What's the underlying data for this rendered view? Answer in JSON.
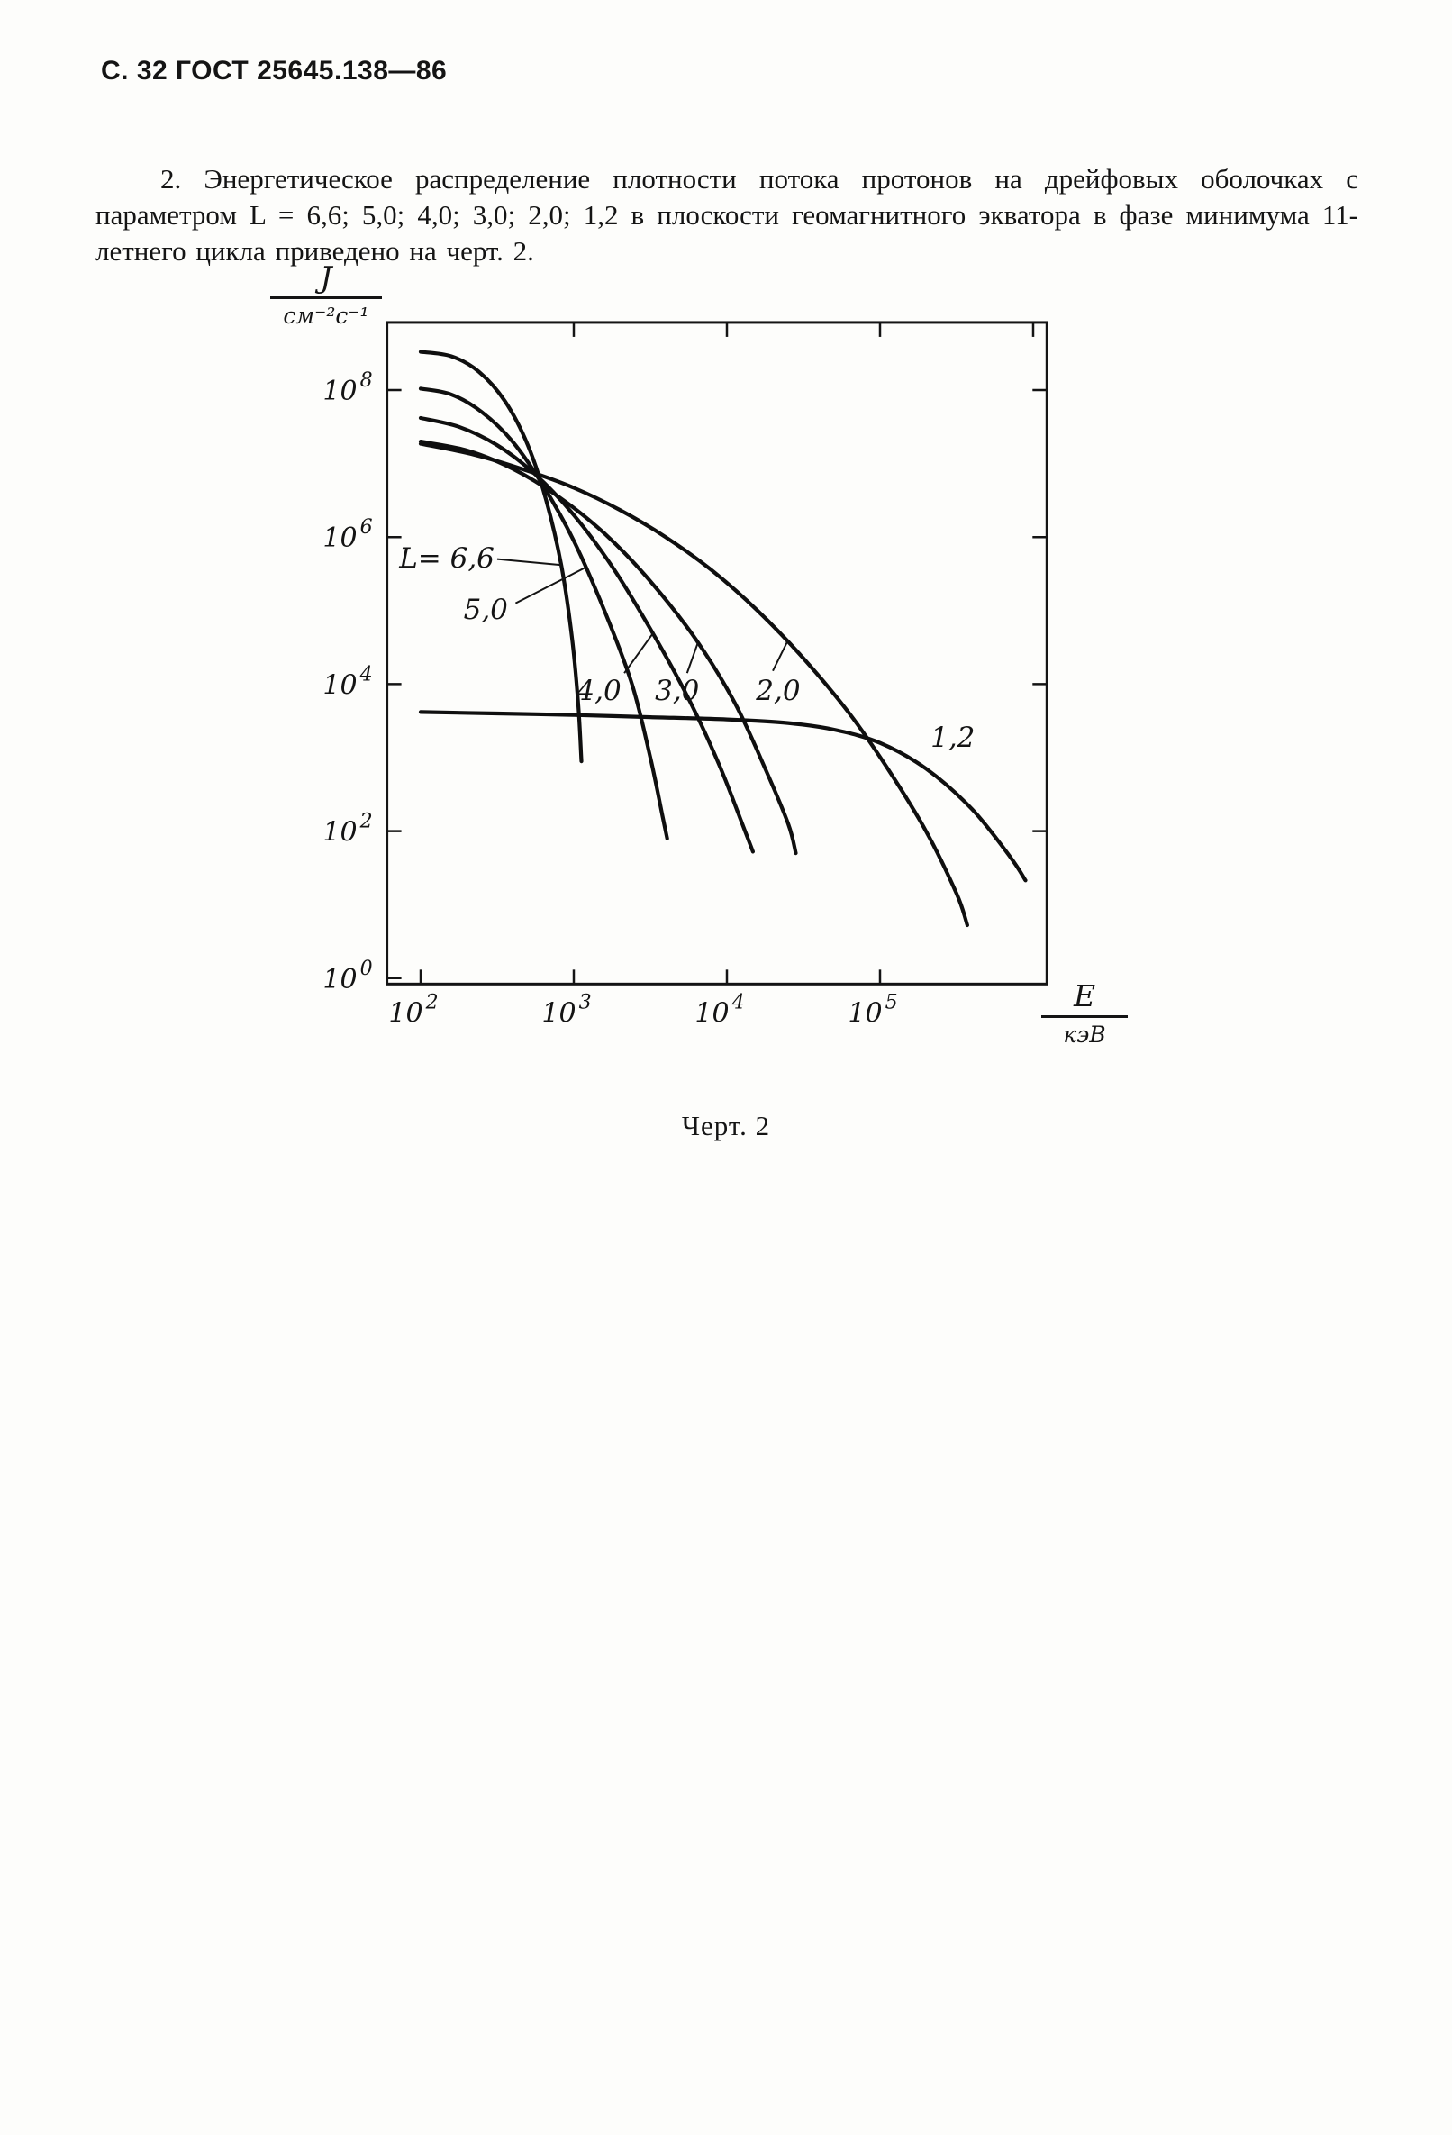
{
  "page": {
    "header": "С. 32 ГОСТ 25645.138—86",
    "paragraph": "2. Энергетическое распределение плотности потока протонов на дрейфовых оболочках с параметром L = 6,6; 5,0; 4,0; 3,0; 2,0; 1,2 в плоскости геомагнитного экватора в фазе минимума 11-летнего цикла приведено на черт. 2.",
    "caption": "Черт. 2"
  },
  "chart_data": {
    "type": "line",
    "title": "Черт. 2 — Энергетическое распределение плотности потока протонов",
    "grid": false,
    "legend_position": "inline-labels",
    "x_axis": {
      "label_numerator": "E",
      "label_denominator": "кэВ",
      "scale": "log",
      "tick_exponents": [
        2,
        3,
        4,
        5
      ],
      "top_tick_exponents": [
        3,
        4,
        5,
        6
      ],
      "range_log10": [
        1.78,
        6.09
      ]
    },
    "y_axis": {
      "label_numerator": "J",
      "label_denominator": "см⁻²с⁻¹",
      "scale": "log",
      "tick_exponents": [
        8,
        6,
        4,
        2,
        0
      ],
      "right_tick_exponents": [
        8,
        6,
        4,
        2
      ],
      "range_log10": [
        -0.08,
        8.92
      ]
    },
    "series": [
      {
        "name": "L=6,6",
        "points_log10": [
          [
            2.0,
            8.52
          ],
          [
            2.2,
            8.46
          ],
          [
            2.38,
            8.25
          ],
          [
            2.55,
            7.85
          ],
          [
            2.7,
            7.25
          ],
          [
            2.82,
            6.5
          ],
          [
            2.92,
            5.6
          ],
          [
            2.99,
            4.6
          ],
          [
            3.03,
            3.7
          ],
          [
            3.05,
            2.95
          ]
        ]
      },
      {
        "name": "L=5,0",
        "points_log10": [
          [
            2.0,
            8.02
          ],
          [
            2.2,
            7.94
          ],
          [
            2.4,
            7.7
          ],
          [
            2.6,
            7.3
          ],
          [
            2.8,
            6.7
          ],
          [
            3.0,
            5.95
          ],
          [
            3.2,
            5.0
          ],
          [
            3.38,
            4.0
          ],
          [
            3.5,
            3.0
          ],
          [
            3.58,
            2.2
          ],
          [
            3.61,
            1.9
          ]
        ]
      },
      {
        "name": "L=4,0",
        "points_log10": [
          [
            2.0,
            7.62
          ],
          [
            2.25,
            7.5
          ],
          [
            2.5,
            7.25
          ],
          [
            2.75,
            6.85
          ],
          [
            3.0,
            6.3
          ],
          [
            3.25,
            5.6
          ],
          [
            3.5,
            4.75
          ],
          [
            3.75,
            3.8
          ],
          [
            3.95,
            2.9
          ],
          [
            4.1,
            2.1
          ],
          [
            4.17,
            1.72
          ]
        ]
      },
      {
        "name": "L=3,0",
        "points_log10": [
          [
            2.0,
            7.3
          ],
          [
            2.3,
            7.18
          ],
          [
            2.6,
            6.93
          ],
          [
            2.9,
            6.55
          ],
          [
            3.2,
            6.05
          ],
          [
            3.5,
            5.4
          ],
          [
            3.8,
            4.6
          ],
          [
            4.05,
            3.75
          ],
          [
            4.25,
            2.85
          ],
          [
            4.4,
            2.1
          ],
          [
            4.45,
            1.7
          ]
        ]
      },
      {
        "name": "L=2,0",
        "points_log10": [
          [
            2.0,
            7.27
          ],
          [
            2.35,
            7.12
          ],
          [
            2.7,
            6.9
          ],
          [
            3.0,
            6.67
          ],
          [
            3.3,
            6.37
          ],
          [
            3.6,
            6.0
          ],
          [
            3.9,
            5.55
          ],
          [
            4.2,
            5.0
          ],
          [
            4.5,
            4.35
          ],
          [
            4.8,
            3.6
          ],
          [
            5.05,
            2.85
          ],
          [
            5.3,
            2.0
          ],
          [
            5.5,
            1.15
          ],
          [
            5.57,
            0.72
          ]
        ]
      },
      {
        "name": "L=1,2",
        "points_log10": [
          [
            2.0,
            3.62
          ],
          [
            2.5,
            3.6
          ],
          [
            3.0,
            3.58
          ],
          [
            3.5,
            3.55
          ],
          [
            4.0,
            3.52
          ],
          [
            4.4,
            3.47
          ],
          [
            4.7,
            3.38
          ],
          [
            5.0,
            3.2
          ],
          [
            5.3,
            2.85
          ],
          [
            5.6,
            2.3
          ],
          [
            5.85,
            1.65
          ],
          [
            5.95,
            1.33
          ]
        ]
      }
    ],
    "curve_labels": [
      {
        "text": "L= 6,6",
        "log_e": 1.86,
        "log_j": 5.72
      },
      {
        "text": "5,0",
        "log_e": 2.28,
        "log_j": 5.02
      },
      {
        "text": "4,0",
        "log_e": 3.02,
        "log_j": 3.92
      },
      {
        "text": "3,0",
        "log_e": 3.53,
        "log_j": 3.92
      },
      {
        "text": "2,0",
        "log_e": 4.19,
        "log_j": 3.92
      },
      {
        "text": "1,2",
        "log_e": 5.33,
        "log_j": 3.28
      }
    ],
    "leader_lines": [
      {
        "from": [
          2.5,
          5.7
        ],
        "to": [
          2.92,
          5.62
        ]
      },
      {
        "from": [
          2.62,
          5.1
        ],
        "to": [
          3.07,
          5.58
        ]
      },
      {
        "from": [
          3.33,
          4.15
        ],
        "to": [
          3.52,
          4.7
        ]
      },
      {
        "from": [
          3.74,
          4.15
        ],
        "to": [
          3.81,
          4.56
        ]
      },
      {
        "from": [
          4.3,
          4.18
        ],
        "to": [
          4.4,
          4.6
        ]
      }
    ],
    "ink_color": "#141414"
  }
}
